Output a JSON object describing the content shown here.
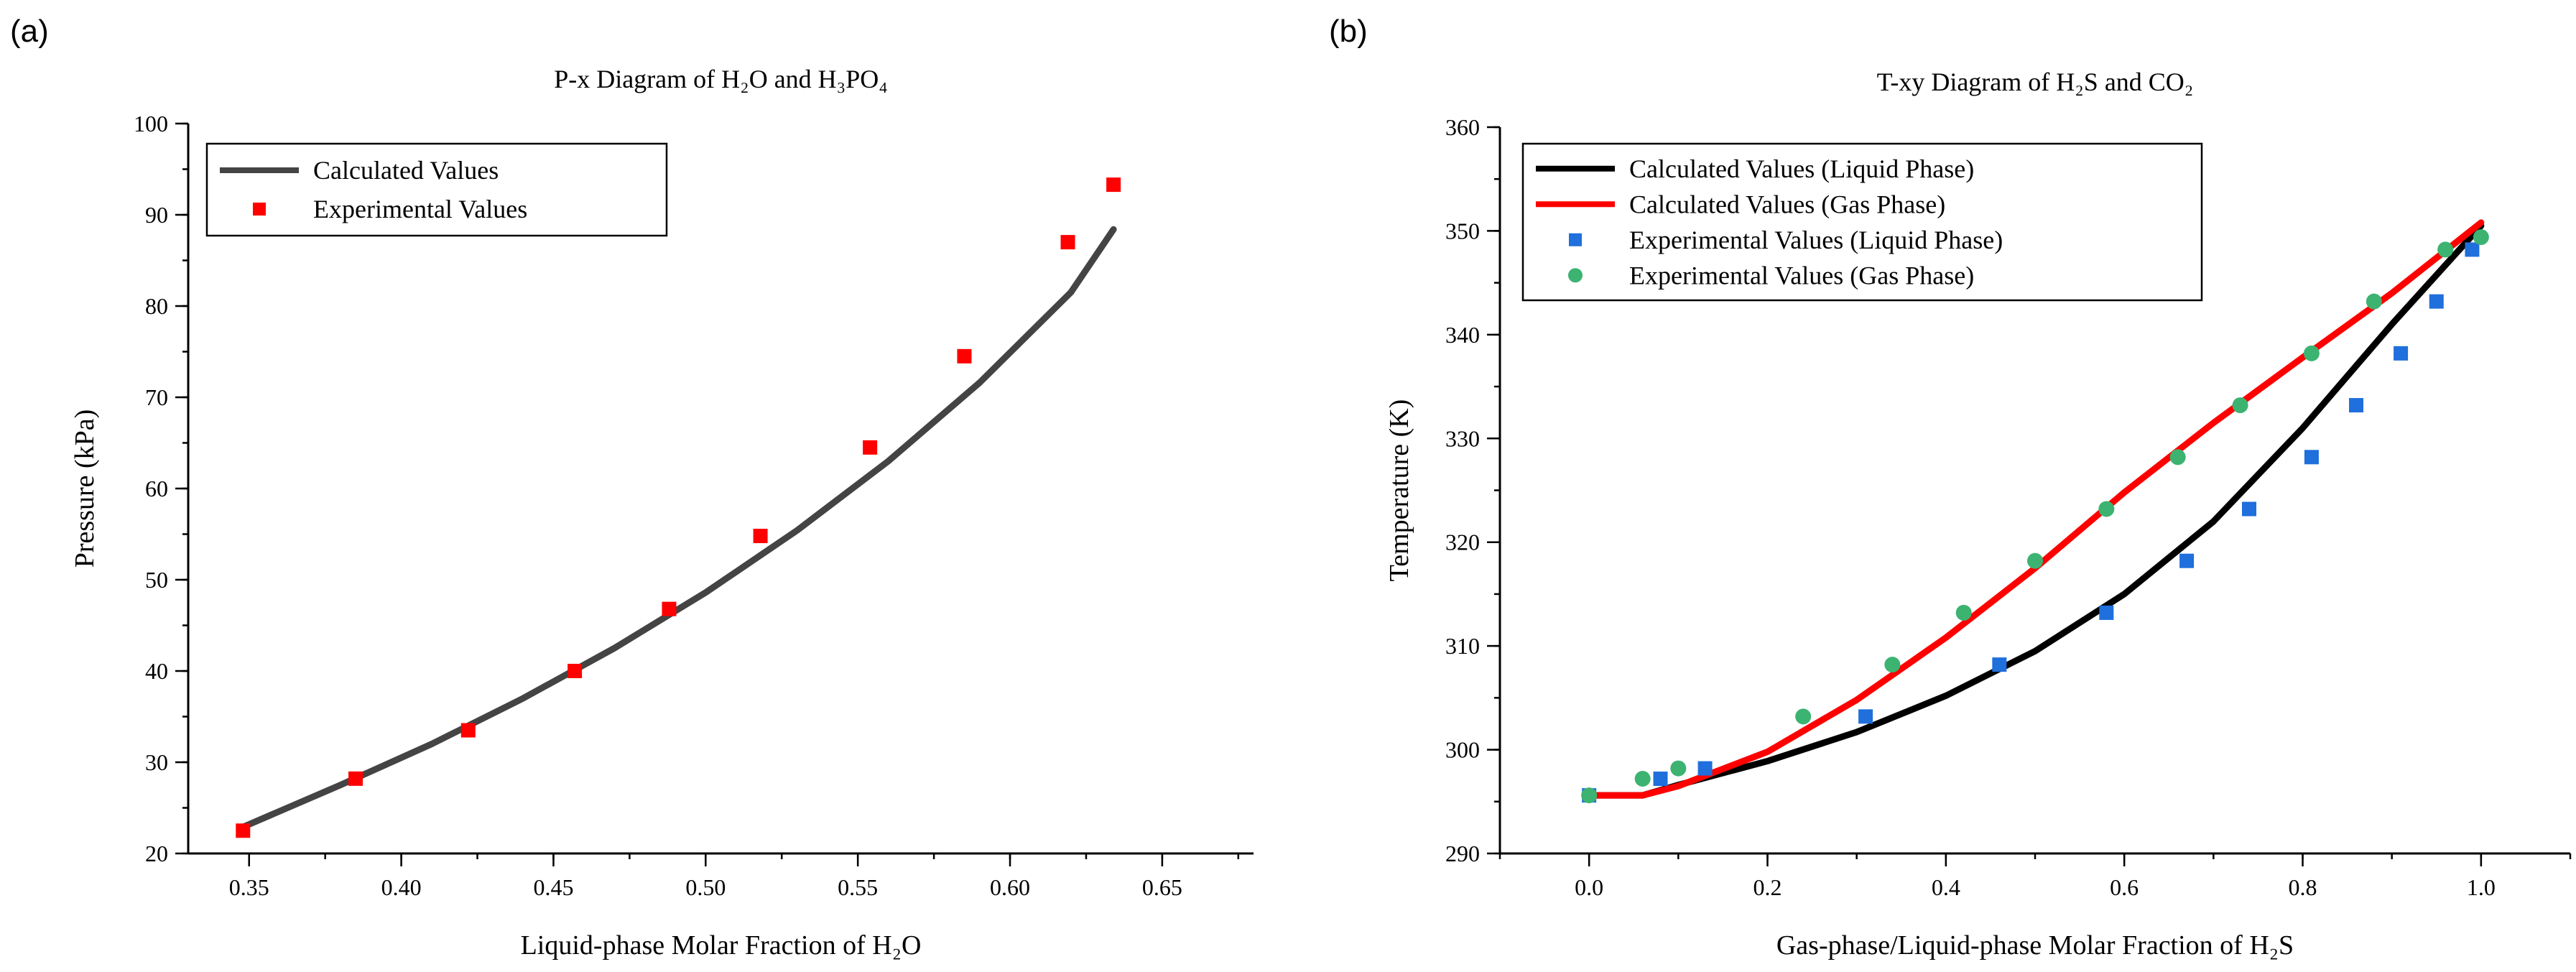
{
  "chart_data": [
    {
      "panel": "(a)",
      "type": "scatter",
      "title": "P-x Diagram of H₂O and H₃PO₄",
      "xlabel": "Liquid-phase Molar Fraction of H₂O",
      "ylabel": "Pressure (kPa)",
      "xlim": [
        0.33,
        0.68
      ],
      "ylim": [
        20,
        100
      ],
      "xticks": [
        "0.35",
        "0.40",
        "0.45",
        "0.50",
        "0.55",
        "0.60",
        "0.65"
      ],
      "yticks": [
        "20",
        "30",
        "40",
        "50",
        "60",
        "70",
        "80",
        "90",
        "100"
      ],
      "grid": false,
      "legend": "top-left",
      "series": [
        {
          "name": "Calculated Values",
          "kind": "line",
          "color": "#444444",
          "x": [
            0.348,
            0.38,
            0.41,
            0.44,
            0.47,
            0.5,
            0.53,
            0.56,
            0.59,
            0.62,
            0.634
          ],
          "y": [
            22.9,
            27.5,
            32.0,
            37.0,
            42.5,
            48.6,
            55.4,
            63.0,
            71.6,
            81.5,
            88.4
          ]
        },
        {
          "name": "Experimental Values",
          "kind": "scatter",
          "marker": "square",
          "color": "#ff0000",
          "x": [
            0.348,
            0.385,
            0.422,
            0.457,
            0.488,
            0.518,
            0.554,
            0.585,
            0.619,
            0.634
          ],
          "y": [
            22.5,
            28.2,
            33.5,
            40.0,
            46.8,
            54.8,
            64.5,
            74.5,
            87.0,
            93.3
          ]
        }
      ]
    },
    {
      "panel": "(b)",
      "type": "scatter",
      "title": "T-xy Diagram of H₂S and CO₂",
      "xlabel": "Gas-phase/Liquid-phase Molar Fraction of H₂S",
      "ylabel": "Temperature (K)",
      "xlim": [
        -0.1,
        1.1
      ],
      "ylim": [
        290,
        360
      ],
      "xticks": [
        "0.0",
        "0.2",
        "0.4",
        "0.6",
        "0.8",
        "1.0"
      ],
      "yticks": [
        "290",
        "300",
        "310",
        "320",
        "330",
        "340",
        "350",
        "360"
      ],
      "grid": false,
      "legend": "top-left",
      "series": [
        {
          "name": "Calculated Values (Liquid Phase)",
          "kind": "line",
          "color": "#000000",
          "x": [
            0.0,
            0.06,
            0.1,
            0.2,
            0.3,
            0.4,
            0.5,
            0.6,
            0.7,
            0.8,
            0.9,
            1.0
          ],
          "y": [
            295.6,
            295.6,
            296.6,
            298.9,
            301.7,
            305.2,
            309.5,
            315.0,
            322.0,
            331.0,
            341.0,
            350.5
          ]
        },
        {
          "name": "Calculated Values (Gas Phase)",
          "kind": "line",
          "color": "#ff0000",
          "x": [
            0.0,
            0.06,
            0.1,
            0.2,
            0.3,
            0.4,
            0.5,
            0.6,
            0.7,
            0.8,
            0.9,
            1.0
          ],
          "y": [
            295.6,
            295.6,
            296.5,
            299.8,
            304.8,
            310.8,
            317.5,
            324.8,
            331.5,
            337.8,
            344.0,
            350.8
          ]
        },
        {
          "name": "Experimental Values (Liquid Phase)",
          "kind": "scatter",
          "marker": "square",
          "color": "#1f6fdc",
          "x": [
            0.0,
            0.08,
            0.13,
            0.31,
            0.46,
            0.58,
            0.67,
            0.74,
            0.81,
            0.86,
            0.91,
            0.95,
            0.99
          ],
          "y": [
            295.6,
            297.2,
            298.2,
            303.2,
            308.2,
            313.2,
            318.2,
            323.2,
            328.2,
            333.2,
            338.2,
            343.2,
            348.2
          ]
        },
        {
          "name": "Experimental Values (Gas Phase)",
          "kind": "scatter",
          "marker": "circle",
          "color": "#3cb371",
          "x": [
            0.0,
            0.06,
            0.1,
            0.24,
            0.34,
            0.42,
            0.5,
            0.58,
            0.66,
            0.73,
            0.81,
            0.88,
            0.96,
            1.0
          ],
          "y": [
            295.6,
            297.2,
            298.2,
            303.2,
            308.2,
            313.2,
            318.2,
            323.2,
            328.2,
            333.2,
            338.2,
            343.2,
            348.2,
            349.4
          ]
        }
      ]
    }
  ]
}
